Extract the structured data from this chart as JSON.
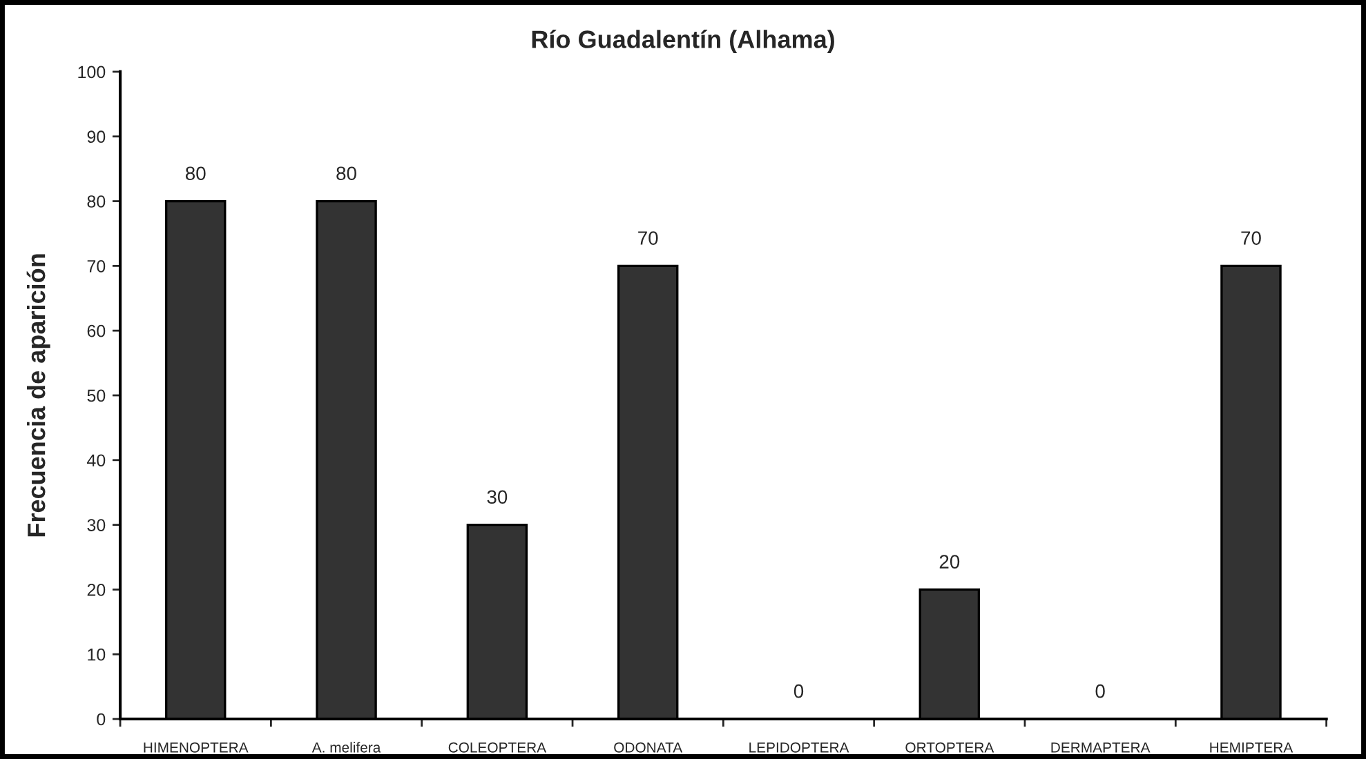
{
  "chart_data": {
    "type": "bar",
    "title": "Río Guadalentín (Alhama)",
    "ylabel": "Frecuencia de aparición",
    "categories": [
      "HIMENOPTERA",
      "A. melifera",
      "COLEOPTERA",
      "ODONATA",
      "LEPIDOPTERA",
      "ORTOPTERA",
      "DERMAPTERA",
      "HEMIPTERA"
    ],
    "values": [
      80,
      80,
      30,
      70,
      0,
      20,
      0,
      70
    ],
    "color": "#333333",
    "ylim": [
      0,
      100
    ],
    "yticks": [
      0,
      10,
      20,
      30,
      40,
      50,
      60,
      70,
      80,
      90,
      100
    ],
    "grid": false,
    "data_labels": true
  }
}
